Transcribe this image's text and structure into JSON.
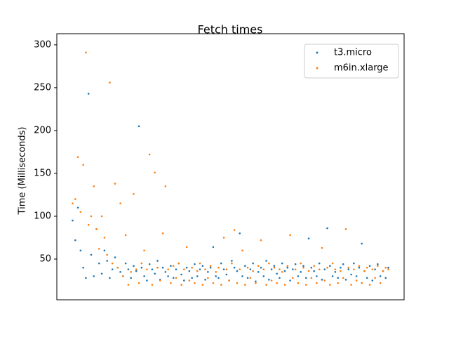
{
  "chart_data": {
    "type": "scatter",
    "title": "Fetch times",
    "y_label": "Time (Milliseconds)",
    "ylim": [
      2.5,
      313
    ],
    "yticks": [
      50,
      100,
      150,
      200,
      250,
      300
    ],
    "grid": false,
    "legend": "upper right",
    "series": [
      {
        "name": "t3.micro",
        "color": "#1f77b4",
        "values": [
          95,
          72,
          110,
          60,
          40,
          28,
          243,
          55,
          30,
          85,
          45,
          33,
          60,
          48,
          28,
          38,
          52,
          40,
          35,
          30,
          45,
          38,
          28,
          42,
          36,
          205,
          40,
          30,
          25,
          44,
          38,
          33,
          48,
          26,
          40,
          35,
          30,
          42,
          28,
          38,
          45,
          32,
          25,
          40,
          36,
          28,
          44,
          30,
          38,
          42,
          26,
          35,
          40,
          64,
          30,
          28,
          45,
          38,
          32,
          25,
          48,
          40,
          36,
          80,
          30,
          42,
          28,
          38,
          45,
          24,
          35,
          40,
          30,
          48,
          26,
          38,
          42,
          33,
          28,
          45,
          36,
          40,
          25,
          38,
          44,
          30,
          35,
          42,
          28,
          74,
          40,
          36,
          30,
          45,
          26,
          38,
          86,
          42,
          30,
          35,
          28,
          40,
          44,
          26,
          38,
          32,
          45,
          30,
          40,
          68,
          36,
          28,
          42,
          25,
          38,
          44,
          30,
          36,
          28,
          40
        ]
      },
      {
        "name": "m6in.xlarge",
        "color": "#ff7f0e",
        "values": [
          115,
          120,
          169,
          105,
          160,
          291,
          90,
          100,
          135,
          85,
          62,
          100,
          75,
          55,
          256,
          45,
          138,
          40,
          115,
          30,
          78,
          20,
          35,
          126,
          38,
          22,
          45,
          60,
          38,
          172,
          20,
          151,
          40,
          25,
          80,
          135,
          38,
          22,
          42,
          28,
          45,
          20,
          38,
          64,
          25,
          40,
          22,
          36,
          45,
          20,
          38,
          28,
          42,
          22,
          35,
          40,
          20,
          75,
          38,
          25,
          45,
          84,
          22,
          38,
          60,
          20,
          40,
          28,
          36,
          22,
          42,
          72,
          38,
          20,
          45,
          25,
          40,
          22,
          38,
          35,
          20,
          42,
          78,
          28,
          38,
          22,
          45,
          40,
          20,
          36,
          28,
          42,
          22,
          38,
          63,
          25,
          40,
          20,
          45,
          38,
          22,
          36,
          28,
          85,
          40,
          20,
          38,
          25,
          42,
          22,
          36,
          40,
          20,
          38,
          28,
          42,
          22,
          36,
          40,
          38
        ]
      }
    ]
  }
}
